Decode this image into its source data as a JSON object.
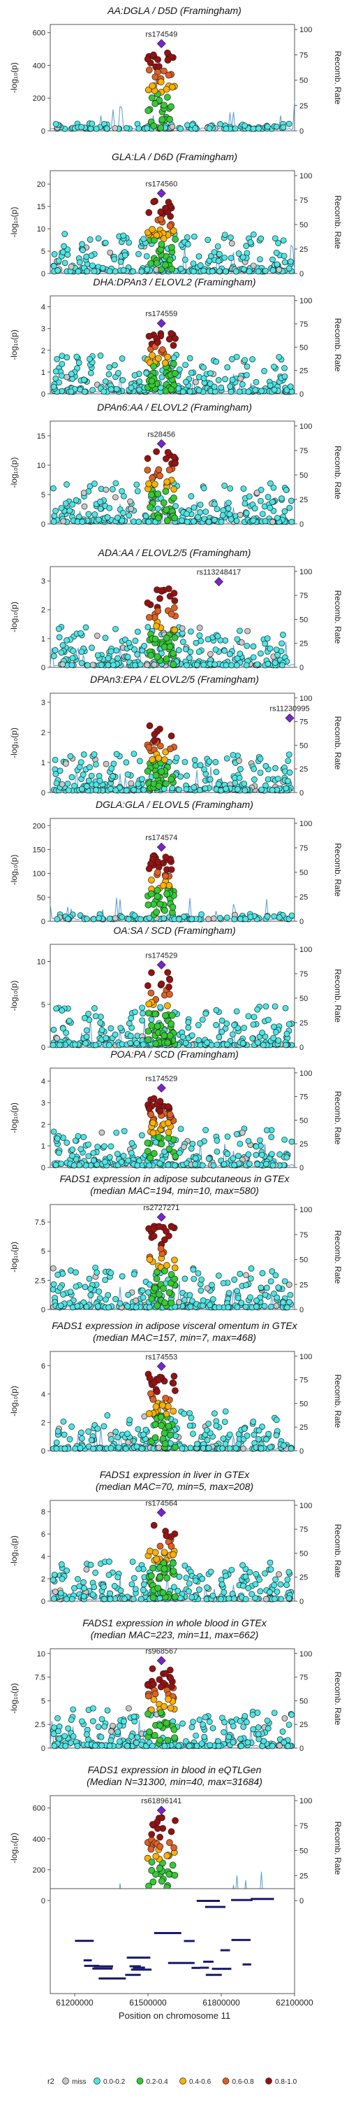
{
  "x_axis_title": "Position on chromosome 11",
  "x_tick_labels": [
    "61200000",
    "61500000",
    "61800000",
    "62100000"
  ],
  "x_ticks": [
    61200000,
    61500000,
    61800000,
    62100000
  ],
  "y_axis_left_label": "-log₁₀(p)",
  "y_axis_right_label": "Recomb. Rate",
  "legend": {
    "title": "r2",
    "items": [
      {
        "label": "miss",
        "color": "#c8c8c8"
      },
      {
        "label": "0.0-0.2",
        "color": "#4ce6e6"
      },
      {
        "label": "0.2-0.4",
        "color": "#33cc33"
      },
      {
        "label": "0.4-0.6",
        "color": "#ffb000"
      },
      {
        "label": "0.6-0.8",
        "color": "#e06020"
      },
      {
        "label": "0.8-1.0",
        "color": "#9a1010"
      }
    ]
  },
  "lead_color": "#7b22d6",
  "recomb_color": "#5a9bd5",
  "chart_data": [
    {
      "type": "scatter",
      "title_lines": [
        "AA:DGLA / D5D (Framingham)"
      ],
      "lead_snp": "rs174549",
      "y_ticks": [
        0,
        200,
        400,
        600
      ],
      "ylim": [
        0,
        650
      ],
      "lead_peak": 0.82
    },
    {
      "type": "scatter",
      "title_lines": [
        "GLA:LA / D6D (Framingham)"
      ],
      "lead_snp": "rs174560",
      "y_ticks": [
        0,
        5,
        10,
        15,
        20
      ],
      "ylim": [
        0,
        23
      ],
      "lead_peak": 0.78
    },
    {
      "type": "scatter",
      "title_lines": [
        "DHA:DPAn3 / ELOVL2 (Framingham)"
      ],
      "lead_snp": "rs174559",
      "y_ticks": [
        0,
        1,
        2,
        3,
        4
      ],
      "ylim": [
        0,
        4.5
      ],
      "lead_peak": 0.72
    },
    {
      "type": "scatter",
      "title_lines": [
        "DPAn6:AA / ELOVL2 (Framingham)"
      ],
      "lead_snp": "rs28456",
      "y_ticks": [
        0,
        5,
        10,
        15
      ],
      "ylim": [
        0,
        17.5
      ],
      "lead_peak": 0.78
    },
    {
      "type": "scatter",
      "title_lines": [
        "ADA:AA / ELOVL2/5 (Framingham)"
      ],
      "lead_snp": "rs113248417",
      "y_ticks": [
        0,
        1,
        2,
        3
      ],
      "ylim": [
        0,
        3.5
      ],
      "lead_peak": 0.85
    },
    {
      "type": "scatter",
      "title_lines": [
        "DPAn3:EPA / ELOVL2/5 (Framingham)"
      ],
      "lead_snp": "rs11230995",
      "y_ticks": [
        0,
        1,
        2,
        3
      ],
      "ylim": [
        0,
        3.3
      ],
      "lead_peak": 0.75
    },
    {
      "type": "scatter",
      "title_lines": [
        "DGLA:GLA / ELOVL5 (Framingham)"
      ],
      "lead_snp": "rs174574",
      "y_ticks": [
        0,
        50,
        100,
        150,
        200
      ],
      "ylim": [
        0,
        215
      ],
      "lead_peak": 0.72
    },
    {
      "type": "scatter",
      "title_lines": [
        "OA:SA / SCD (Framingham)"
      ],
      "lead_snp": "rs174529",
      "y_ticks": [
        0,
        5,
        10
      ],
      "ylim": [
        0,
        12
      ],
      "lead_peak": 0.8
    },
    {
      "type": "scatter",
      "title_lines": [
        "POA:PA / SCD (Framingham)"
      ],
      "lead_snp": "rs174529",
      "y_ticks": [
        0,
        1,
        2,
        3,
        4
      ],
      "ylim": [
        0,
        4.6
      ],
      "lead_peak": 0.8
    },
    {
      "type": "scatter",
      "title_lines": [
        "FADS1 expression in adipose subcutaneous in GTEx",
        "(median MAC=194, min=10, max=580)"
      ],
      "lead_snp": "rs2727271",
      "y_ticks": [
        0,
        2.5,
        5,
        7.5
      ],
      "ylim": [
        0,
        9
      ],
      "lead_peak": 0.88
    },
    {
      "type": "scatter",
      "title_lines": [
        "FADS1 expression in adipose visceral omentum in GTEx",
        "(median MAC=157, min=7, max=468)"
      ],
      "lead_snp": "rs174553",
      "y_ticks": [
        0,
        2,
        4,
        6
      ],
      "ylim": [
        0,
        7
      ],
      "lead_peak": 0.85
    },
    {
      "type": "scatter",
      "title_lines": [
        "FADS1 expression in liver in GTEx",
        "(median MAC=70, min=5, max=208)"
      ],
      "lead_snp": "rs174564",
      "y_ticks": [
        0,
        2,
        4,
        6,
        8
      ],
      "ylim": [
        0,
        9
      ],
      "lead_peak": 0.88
    },
    {
      "type": "scatter",
      "title_lines": [
        "FADS1 expression in whole blood in GTEx",
        "(median MAC=223, min=11, max=662)"
      ],
      "lead_snp": "rs968567",
      "y_ticks": [
        0,
        2.5,
        5,
        7.5,
        10
      ],
      "ylim": [
        0,
        10.5
      ],
      "lead_peak": 0.88
    },
    {
      "type": "scatter",
      "title_lines": [
        "FADS1 expression in blood in eQTLGen",
        "(Median N=31300, min=40, max=31684)"
      ],
      "lead_snp": "rs61896141",
      "y_ticks": [
        0,
        200,
        400,
        600
      ],
      "ylim": [
        0,
        680
      ],
      "lead_peak": 0.86
    }
  ],
  "recomb_ticks": [
    0,
    25,
    50,
    75,
    100
  ],
  "xlim": [
    61100000,
    62100000
  ]
}
